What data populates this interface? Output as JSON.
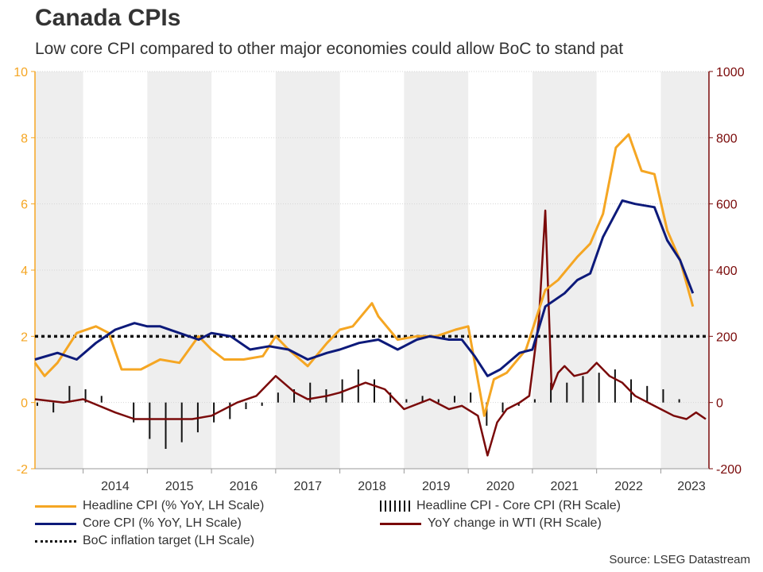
{
  "title": "Canada CPIs",
  "subtitle": "Low core CPI compared to other major economies could allow BoC to stand pat",
  "source": "Source: LSEG Datastream",
  "colors": {
    "headline": "#f5a623",
    "core": "#0d1a7a",
    "wti": "#7a0a0a",
    "diff_bars": "#111111",
    "target": "#111111",
    "left_axis": "#f5a623",
    "right_axis": "#7a0a0a",
    "band": "#eeeeee"
  },
  "legend": [
    {
      "label": "Headline CPI (% YoY, LH Scale)",
      "style": "line",
      "color": "#f5a623"
    },
    {
      "label": "Core CPI (% YoY, LH Scale)",
      "style": "line",
      "color": "#0d1a7a"
    },
    {
      "label": "BoC inflation target (LH Scale)",
      "style": "dotted",
      "color": "#111111"
    },
    {
      "label": "Headline CPI - Core CPI (RH Scale)",
      "style": "bars",
      "color": "#111111"
    },
    {
      "label": "YoY change in WTI (RH Scale)",
      "style": "line",
      "color": "#7a0a0a"
    }
  ],
  "chart_data": {
    "type": "line",
    "xlim": [
      2013.25,
      2023.75
    ],
    "x_tick_labels": [
      "2014",
      "2015",
      "2016",
      "2017",
      "2018",
      "2019",
      "2020",
      "2021",
      "2022",
      "2023"
    ],
    "shaded_years": [
      2013,
      2015,
      2017,
      2019,
      2021,
      2023
    ],
    "left_axis": {
      "ylim": [
        -2,
        10
      ],
      "ticks": [
        "-2",
        "0",
        "2",
        "4",
        "6",
        "8",
        "10"
      ]
    },
    "right_axis": {
      "ylim": [
        -200,
        1000
      ],
      "ticks": [
        "-200",
        "0",
        "200",
        "400",
        "600",
        "800",
        "1000"
      ]
    },
    "grid": true,
    "target_level": 2,
    "series": [
      {
        "name": "Headline CPI (% YoY, LH Scale)",
        "axis": "left",
        "x": [
          2013.25,
          2013.4,
          2013.6,
          2013.9,
          2014.2,
          2014.4,
          2014.6,
          2014.9,
          2015.2,
          2015.5,
          2015.8,
          2016.0,
          2016.2,
          2016.5,
          2016.8,
          2017.0,
          2017.2,
          2017.5,
          2017.8,
          2018.0,
          2018.2,
          2018.5,
          2018.6,
          2018.9,
          2019.2,
          2019.5,
          2019.8,
          2020.0,
          2020.25,
          2020.4,
          2020.6,
          2020.9,
          2021.2,
          2021.4,
          2021.7,
          2021.9,
          2022.1,
          2022.3,
          2022.5,
          2022.7,
          2022.9,
          2023.1,
          2023.3,
          2023.5
        ],
        "values": [
          1.2,
          0.8,
          1.2,
          2.1,
          2.3,
          2.1,
          1.0,
          1.0,
          1.3,
          1.2,
          2.0,
          1.6,
          1.3,
          1.3,
          1.4,
          2.0,
          1.6,
          1.1,
          1.8,
          2.2,
          2.3,
          3.0,
          2.6,
          1.9,
          2.0,
          2.0,
          2.2,
          2.3,
          -0.4,
          0.7,
          0.9,
          1.6,
          3.4,
          3.7,
          4.4,
          4.8,
          5.7,
          7.7,
          8.1,
          7.0,
          6.9,
          5.2,
          4.3,
          2.9
        ]
      },
      {
        "name": "Core CPI (% YoY, LH Scale)",
        "axis": "left",
        "x": [
          2013.25,
          2013.6,
          2013.9,
          2014.2,
          2014.5,
          2014.8,
          2015.0,
          2015.2,
          2015.5,
          2015.8,
          2016.0,
          2016.3,
          2016.6,
          2016.9,
          2017.2,
          2017.5,
          2017.8,
          2018.0,
          2018.3,
          2018.6,
          2018.9,
          2019.2,
          2019.4,
          2019.7,
          2019.9,
          2020.1,
          2020.3,
          2020.5,
          2020.8,
          2021.0,
          2021.2,
          2021.5,
          2021.7,
          2021.9,
          2022.1,
          2022.4,
          2022.6,
          2022.9,
          2023.1,
          2023.3,
          2023.5
        ],
        "values": [
          1.3,
          1.5,
          1.3,
          1.8,
          2.2,
          2.4,
          2.3,
          2.3,
          2.1,
          1.9,
          2.1,
          2.0,
          1.6,
          1.7,
          1.6,
          1.3,
          1.5,
          1.6,
          1.8,
          1.9,
          1.6,
          1.9,
          2.0,
          1.9,
          1.9,
          1.4,
          0.8,
          1.0,
          1.5,
          1.6,
          2.9,
          3.3,
          3.7,
          3.9,
          5.0,
          6.1,
          6.0,
          5.9,
          4.9,
          4.3,
          3.3
        ]
      },
      {
        "name": "YoY change in WTI (RH Scale)",
        "axis": "right",
        "x": [
          2013.25,
          2013.7,
          2014.0,
          2014.5,
          2014.8,
          2015.2,
          2015.7,
          2016.0,
          2016.4,
          2016.7,
          2017.0,
          2017.3,
          2017.5,
          2017.8,
          2018.0,
          2018.4,
          2018.7,
          2019.0,
          2019.4,
          2019.7,
          2019.9,
          2020.15,
          2020.3,
          2020.45,
          2020.6,
          2020.8,
          2020.95,
          2021.1,
          2021.2,
          2021.3,
          2021.4,
          2021.5,
          2021.65,
          2021.85,
          2022.0,
          2022.2,
          2022.4,
          2022.6,
          2022.8,
          2023.0,
          2023.2,
          2023.4,
          2023.55,
          2023.7
        ],
        "values": [
          10,
          0,
          10,
          -30,
          -50,
          -50,
          -50,
          -40,
          0,
          20,
          80,
          30,
          10,
          20,
          30,
          60,
          40,
          -20,
          10,
          -20,
          -10,
          -40,
          -160,
          -60,
          -20,
          0,
          20,
          250,
          580,
          40,
          90,
          110,
          80,
          90,
          120,
          80,
          60,
          20,
          0,
          -20,
          -40,
          -50,
          -30,
          -50
        ]
      },
      {
        "name": "Headline CPI - Core CPI (RH Scale)",
        "axis": "right",
        "style": "bars",
        "x": [
          2013.25,
          2013.5,
          2013.75,
          2014.0,
          2014.25,
          2014.5,
          2014.75,
          2015.0,
          2015.25,
          2015.5,
          2015.75,
          2016.0,
          2016.25,
          2016.5,
          2016.75,
          2017.0,
          2017.25,
          2017.5,
          2017.75,
          2018.0,
          2018.25,
          2018.5,
          2018.75,
          2019.0,
          2019.25,
          2019.5,
          2019.75,
          2020.0,
          2020.25,
          2020.5,
          2020.75,
          2021.0,
          2021.25,
          2021.5,
          2021.75,
          2022.0,
          2022.25,
          2022.5,
          2022.75,
          2023.0,
          2023.25,
          2023.5
        ],
        "values": [
          -10,
          -30,
          50,
          40,
          20,
          0,
          -60,
          -110,
          -140,
          -120,
          -90,
          -60,
          -50,
          -20,
          -10,
          30,
          40,
          60,
          40,
          70,
          100,
          70,
          30,
          10,
          20,
          10,
          20,
          30,
          -70,
          -30,
          -10,
          10,
          60,
          60,
          80,
          90,
          100,
          70,
          50,
          40,
          10,
          0
        ]
      }
    ]
  }
}
